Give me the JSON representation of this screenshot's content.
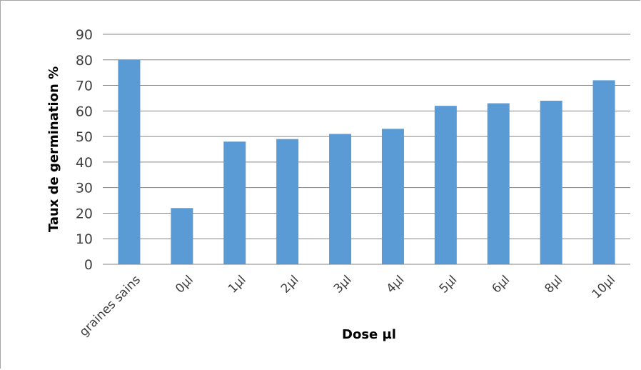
{
  "chart_data": {
    "type": "bar",
    "title": "",
    "xlabel": "Dose µl",
    "ylabel": "Taux de germination %",
    "categories": [
      "graines sains",
      "0µl",
      "1µl",
      "2µl",
      "3µl",
      "4µl",
      "5µl",
      "6µl",
      "8µl",
      "10µl"
    ],
    "series": [
      {
        "values": [
          80,
          22,
          48,
          49,
          51,
          53,
          62,
          63,
          64,
          72
        ]
      }
    ],
    "ylim": [
      0,
      90
    ],
    "yticks": [
      0,
      10,
      20,
      30,
      40,
      50,
      60,
      70,
      80,
      90
    ],
    "grid": true,
    "legend": "none",
    "bar_color": "#5b9bd5",
    "grid_color": "#868686"
  }
}
